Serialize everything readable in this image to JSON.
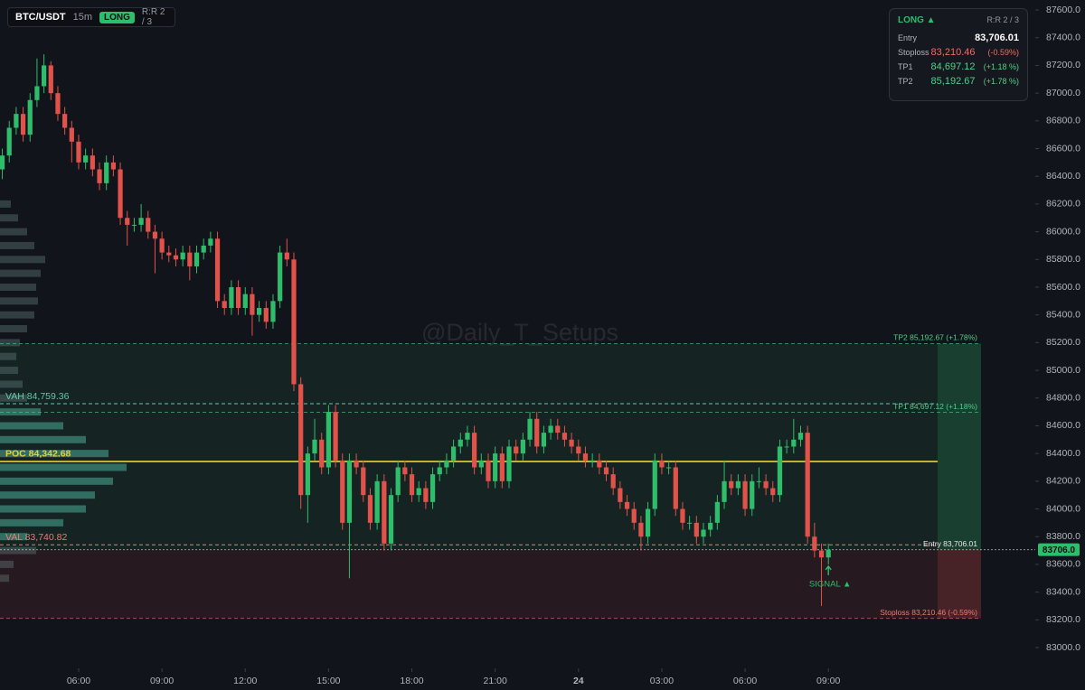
{
  "header": {
    "symbol": "BTC/USDT",
    "interval": "15m",
    "side": "LONG",
    "rr": "R:R 2 / 3"
  },
  "info_panel": {
    "side": "LONG ▲",
    "rr": "R:R 2 / 3",
    "rows": [
      [
        "Entry",
        "83,706.01"
      ],
      [
        "Stoploss",
        "83,210.46",
        "(-0.59%)"
      ],
      [
        "TP1",
        "84,697.12",
        "(+1.18 %)"
      ],
      [
        "TP2",
        "85,192.67",
        "(+1.78 %)"
      ]
    ]
  },
  "watermark": "@Daily_T_Setups",
  "chart_data": {
    "type": "candlestick",
    "up_color": "#2ebd6b",
    "down_color": "#e0524a",
    "open": [
      86450,
      86550,
      86750,
      86850,
      86700,
      86950,
      87050,
      87200,
      87000,
      86850,
      86750,
      86650,
      86500,
      86550,
      86450,
      86350,
      86500,
      86450,
      86100,
      86050,
      86050,
      86100,
      86000,
      85950,
      85850,
      85830,
      85800,
      85850,
      85750,
      85850,
      85900,
      85950,
      85500,
      85450,
      85600,
      85450,
      85550,
      85400,
      85450,
      85350,
      85500,
      85850,
      85800,
      84900,
      84100,
      84400,
      84500,
      84300,
      84700,
      84350,
      83900,
      84350,
      84300,
      84100,
      83900,
      84200,
      83750,
      84100,
      84300,
      84250,
      84100,
      84150,
      84050,
      84250,
      84300,
      84350,
      84450,
      84500,
      84550,
      84300,
      84350,
      84200,
      84400,
      84200,
      84450,
      84400,
      84500,
      84650,
      84450,
      84550,
      84600,
      84550,
      84500,
      84450,
      84400,
      84350,
      84350,
      84300,
      84250,
      84150,
      84050,
      84000,
      83900,
      83800,
      84000,
      84350,
      84300,
      84300,
      84000,
      83900,
      83900,
      83800,
      83850,
      83900,
      84050,
      84200,
      84150,
      84200,
      84000,
      84200,
      84200,
      84150,
      84100,
      84450,
      84450,
      84500,
      84550,
      83800,
      83700,
      83650
    ],
    "high": [
      86600,
      86800,
      86900,
      86900,
      87000,
      87250,
      87280,
      87230,
      87050,
      86900,
      86800,
      86700,
      86600,
      86600,
      86500,
      86550,
      86550,
      86500,
      86150,
      86100,
      86200,
      86150,
      86050,
      86000,
      85900,
      85880,
      85900,
      85900,
      85900,
      85950,
      86000,
      86000,
      85550,
      85650,
      85650,
      85600,
      85600,
      85500,
      85500,
      85550,
      85900,
      85950,
      85850,
      84950,
      84450,
      84650,
      84550,
      84750,
      84750,
      84400,
      84400,
      84400,
      84350,
      84150,
      84250,
      84250,
      84150,
      84350,
      84350,
      84300,
      84200,
      84200,
      84300,
      84350,
      84400,
      84500,
      84550,
      84600,
      84600,
      84400,
      84400,
      84450,
      84450,
      84500,
      84500,
      84550,
      84700,
      84700,
      84600,
      84650,
      84650,
      84600,
      84550,
      84500,
      84450,
      84400,
      84400,
      84350,
      84300,
      84200,
      84100,
      84050,
      83950,
      84050,
      84400,
      84400,
      84350,
      84350,
      84050,
      83950,
      83950,
      83900,
      83950,
      84100,
      84350,
      84250,
      84250,
      84250,
      84250,
      84300,
      84250,
      84200,
      84500,
      84500,
      84650,
      84600,
      84600,
      83900,
      83750,
      83750
    ],
    "low": [
      86380,
      86500,
      86700,
      86650,
      86650,
      86900,
      87000,
      86950,
      86800,
      86700,
      86500,
      86450,
      86450,
      86400,
      86300,
      86300,
      86400,
      86050,
      85900,
      86000,
      86000,
      85950,
      85700,
      85800,
      85780,
      85750,
      85750,
      85650,
      85700,
      85800,
      85850,
      85450,
      85400,
      85400,
      85400,
      85400,
      85250,
      85350,
      85300,
      85300,
      85450,
      85750,
      84850,
      84000,
      83900,
      84350,
      84250,
      84250,
      84300,
      83850,
      83500,
      84250,
      84050,
      83850,
      83850,
      83700,
      83700,
      84050,
      84200,
      84050,
      84050,
      84000,
      84000,
      84200,
      84250,
      84300,
      84400,
      84450,
      84250,
      84250,
      84150,
      84150,
      84150,
      84150,
      84350,
      84350,
      84450,
      84400,
      84400,
      84500,
      84500,
      84450,
      84400,
      84350,
      84300,
      84300,
      84250,
      84200,
      84100,
      84000,
      83950,
      83850,
      83700,
      83750,
      83950,
      84250,
      84250,
      83950,
      83850,
      83850,
      83750,
      83750,
      83800,
      83850,
      84000,
      84100,
      84100,
      83950,
      83950,
      84150,
      84100,
      84050,
      84050,
      84400,
      84400,
      84450,
      83750,
      83650,
      83300,
      83600
    ],
    "close": [
      86550,
      86750,
      86850,
      86700,
      86950,
      87050,
      87200,
      87000,
      86850,
      86750,
      86650,
      86500,
      86550,
      86450,
      86350,
      86500,
      86450,
      86100,
      86050,
      86050,
      86100,
      86000,
      85950,
      85850,
      85830,
      85800,
      85850,
      85750,
      85850,
      85900,
      85950,
      85500,
      85450,
      85600,
      85450,
      85550,
      85400,
      85450,
      85350,
      85500,
      85850,
      85800,
      84900,
      84100,
      84400,
      84500,
      84300,
      84700,
      84350,
      83900,
      84350,
      84300,
      84100,
      83900,
      84200,
      83750,
      84100,
      84300,
      84250,
      84100,
      84150,
      84050,
      84250,
      84300,
      84350,
      84450,
      84500,
      84550,
      84300,
      84350,
      84200,
      84400,
      84200,
      84450,
      84400,
      84500,
      84650,
      84450,
      84550,
      84600,
      84550,
      84500,
      84450,
      84400,
      84350,
      84350,
      84300,
      84250,
      84150,
      84050,
      84000,
      83900,
      83800,
      84000,
      84350,
      84300,
      84300,
      84000,
      83900,
      83900,
      83800,
      83850,
      83900,
      84050,
      84200,
      84150,
      84200,
      84000,
      84200,
      84200,
      84150,
      84100,
      84450,
      84450,
      84500,
      84550,
      83800,
      83700,
      83650,
      83706
    ],
    "xlim": [
      -0.33,
      148.8
    ],
    "xticks": [
      {
        "value": 11,
        "label": "06:00"
      },
      {
        "value": 23,
        "label": "09:00"
      },
      {
        "value": 35,
        "label": "12:00"
      },
      {
        "value": 47,
        "label": "15:00"
      },
      {
        "value": 59,
        "label": "18:00"
      },
      {
        "value": 71,
        "label": "21:00"
      },
      {
        "value": 83,
        "label": "24"
      },
      {
        "value": 95,
        "label": "03:00"
      },
      {
        "value": 107,
        "label": "06:00"
      },
      {
        "value": 119,
        "label": "09:00"
      }
    ],
    "ylim": [
      82850,
      87672
    ],
    "yticks": [
      {
        "value": 83000,
        "label": "83000.0"
      },
      {
        "value": 83200,
        "label": "83200.0"
      },
      {
        "value": 83400,
        "label": "83400.0"
      },
      {
        "value": 83600,
        "label": "83600.0"
      },
      {
        "value": 83800,
        "label": "83800.0"
      },
      {
        "value": 84000,
        "label": "84000.0"
      },
      {
        "value": 84200,
        "label": "84200.0"
      },
      {
        "value": 84400,
        "label": "84400.0"
      },
      {
        "value": 84600,
        "label": "84600.0"
      },
      {
        "value": 84800,
        "label": "84800.0"
      },
      {
        "value": 85000,
        "label": "85000.0"
      },
      {
        "value": 85200,
        "label": "85200.0"
      },
      {
        "value": 85400,
        "label": "85400.0"
      },
      {
        "value": 85600,
        "label": "85600.0"
      },
      {
        "value": 85800,
        "label": "85800.0"
      },
      {
        "value": 86000,
        "label": "86000.0"
      },
      {
        "value": 86200,
        "label": "86200.0"
      },
      {
        "value": 86400,
        "label": "86400.0"
      },
      {
        "value": 86600,
        "label": "86600.0"
      },
      {
        "value": 86800,
        "label": "86800.0"
      },
      {
        "value": 87000,
        "label": "87000.0"
      },
      {
        "value": 87200,
        "label": "87200.0"
      },
      {
        "value": 87400,
        "label": "87400.0"
      },
      {
        "value": 87600,
        "label": "87600.0"
      }
    ],
    "grid": false,
    "trade": {
      "tp2": {
        "value": 85192.67,
        "label": "TP2 85,192.67 (+1.78%)",
        "color": "#4fd08a"
      },
      "tp1": {
        "value": 84697.12,
        "label": "TP1 84,697.12 (+1.18%)",
        "color": "#4fd08a"
      },
      "entry": {
        "value": 83706.01,
        "label": "Entry 83,706.01",
        "color": "#e8e8e8"
      },
      "stoploss": {
        "value": 83210.46,
        "label": "Stoploss 83,210.46 (-0.59%)",
        "color": "#ef7a72"
      }
    },
    "profile_levels": {
      "vah": {
        "value": 84759.36,
        "label": "VAH  84,759.36",
        "color": "#5fc9a8"
      },
      "poc": {
        "value": 84342.68,
        "label": "POC  84,342.68",
        "color": "#e6cf3e"
      },
      "val": {
        "value": 83740.82,
        "label": "VAL  83,740.82",
        "color": "#ef7a72"
      }
    },
    "profile": {
      "prices": [
        83500,
        83600,
        83700,
        83800,
        83900,
        84000,
        84100,
        84200,
        84300,
        84400,
        84500,
        84600,
        84700,
        84800,
        84900,
        85000,
        85100,
        85200,
        85300,
        85400,
        85500,
        85600,
        85700,
        85800,
        85900,
        86000,
        86100,
        86200
      ],
      "volumes": [
        10,
        15,
        40,
        30,
        70,
        95,
        105,
        125,
        140,
        120,
        95,
        70,
        45,
        30,
        25,
        20,
        18,
        22,
        30,
        38,
        42,
        40,
        45,
        50,
        38,
        30,
        20,
        12
      ]
    },
    "signal": "SIGNAL ▲",
    "price_tag": {
      "value": 83706,
      "label": "83706.0"
    }
  }
}
